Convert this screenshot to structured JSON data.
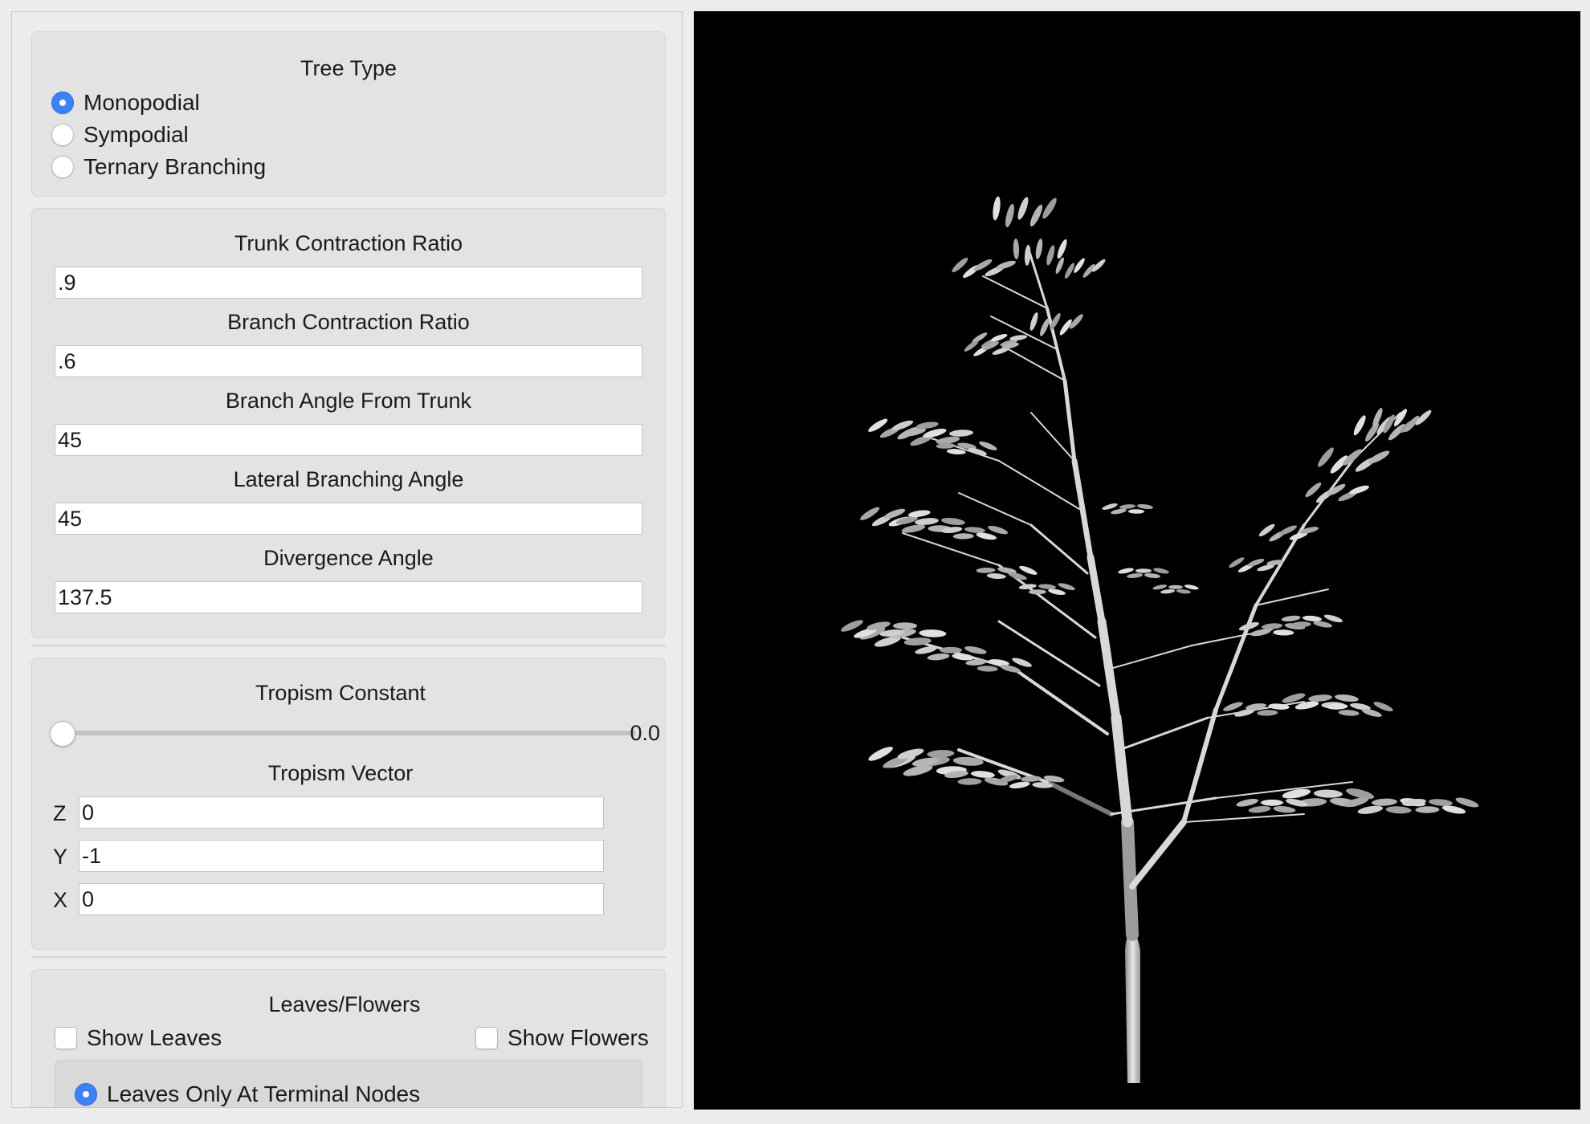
{
  "tree_type": {
    "title": "Tree Type",
    "options": [
      {
        "label": "Monopodial",
        "selected": true
      },
      {
        "label": "Sympodial",
        "selected": false
      },
      {
        "label": "Ternary Branching",
        "selected": false
      }
    ]
  },
  "parameters": [
    {
      "label": "Trunk Contraction Ratio",
      "value": ".9"
    },
    {
      "label": "Branch Contraction Ratio",
      "value": ".6"
    },
    {
      "label": "Branch Angle From Trunk",
      "value": "45"
    },
    {
      "label": "Lateral Branching Angle",
      "value": "45"
    },
    {
      "label": "Divergence Angle",
      "value": "137.5"
    }
  ],
  "tropism": {
    "constant_label": "Tropism Constant",
    "constant_value": "0.0",
    "constant_fraction": 0.0,
    "vector_label": "Tropism Vector",
    "vector": [
      {
        "axis": "Z",
        "value": "0"
      },
      {
        "axis": "Y",
        "value": "-1"
      },
      {
        "axis": "X",
        "value": "0"
      }
    ]
  },
  "leaves_flowers": {
    "title": "Leaves/Flowers",
    "show_leaves_label": "Show Leaves",
    "show_leaves_checked": false,
    "show_flowers_label": "Show Flowers",
    "show_flowers_checked": false,
    "placement_options": [
      {
        "label": "Leaves Only At Terminal Nodes",
        "selected": true
      }
    ]
  },
  "viewport": {
    "background": "#000000",
    "trunk_color": "#d8d8d8",
    "leaf_color": "#bdbdbd"
  }
}
